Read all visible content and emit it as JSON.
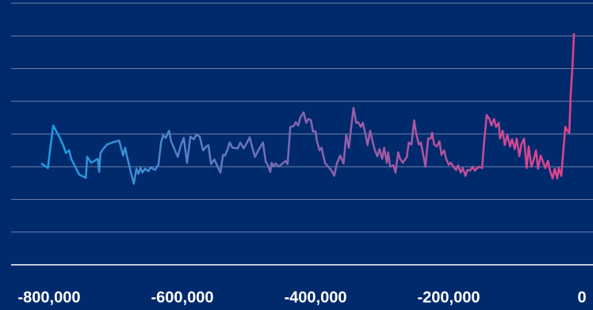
{
  "chart_data": {
    "type": "line",
    "x": [
      -800000,
      -790000,
      -788000,
      -782000,
      -773000,
      -767000,
      -763000,
      -758000,
      -755000,
      -743000,
      -733000,
      -731000,
      -725000,
      -715000,
      -713000,
      -711000,
      -707000,
      -701000,
      -693000,
      -683000,
      -677000,
      -674000,
      -671000,
      -667000,
      -661000,
      -657000,
      -654000,
      -651000,
      -648000,
      -644000,
      -639000,
      -636000,
      -629000,
      -624000,
      -620000,
      -617000,
      -613000,
      -608000,
      -605000,
      -600000,
      -595000,
      -590000,
      -586000,
      -581000,
      -576000,
      -571000,
      -567000,
      -562000,
      -557000,
      -552000,
      -549000,
      -545000,
      -540000,
      -531000,
      -527000,
      -524000,
      -520000,
      -517000,
      -513000,
      -505000,
      -501000,
      -496000,
      -492000,
      -487000,
      -483000,
      -479000,
      -474000,
      -467000,
      -463000,
      -460000,
      -456000,
      -454000,
      -451000,
      -448000,
      -443000,
      -433000,
      -430000,
      -426000,
      -421000,
      -418000,
      -414000,
      -411000,
      -406000,
      -402000,
      -399000,
      -395000,
      -392000,
      -388000,
      -386000,
      -382000,
      -379000,
      -374000,
      -369000,
      -364000,
      -360000,
      -356000,
      -351000,
      -346000,
      -342000,
      -338000,
      -335000,
      -331000,
      -327000,
      -324000,
      -320000,
      -317000,
      -313000,
      -310000,
      -306000,
      -302000,
      -299000,
      -295000,
      -292000,
      -288000,
      -285000,
      -281000,
      -279000,
      -276000,
      -271000,
      -268000,
      -264000,
      -261000,
      -257000,
      -251000,
      -248000,
      -244000,
      -240000,
      -237000,
      -233000,
      -230000,
      -226000,
      -223000,
      -219000,
      -215000,
      -213000,
      -210000,
      -206000,
      -202000,
      -199000,
      -195000,
      -192000,
      -188000,
      -185000,
      -181000,
      -177000,
      -174000,
      -170000,
      -167000,
      -163000,
      -160000,
      -156000,
      -152000,
      -149000,
      -145000,
      -142000,
      -138000,
      -135000,
      -131000,
      -127000,
      -124000,
      -120000,
      -117000,
      -113000,
      -111000,
      -107000,
      -104000,
      -100000,
      -96000,
      -93000,
      -89000,
      -86000,
      -82000,
      -79000,
      -75000,
      -71000,
      -68000,
      -64000,
      -61000,
      -57000,
      -54000,
      -50000,
      -46000,
      -43000,
      -39000,
      -36000,
      -32000,
      -29000,
      -25000,
      -23000,
      -19000,
      -17000,
      -13000,
      -10000,
      -7000,
      -5000,
      -2000,
      0
    ],
    "values": [
      205,
      198,
      215,
      263,
      246,
      233,
      221,
      225,
      212,
      188,
      183,
      215,
      206,
      212,
      192,
      221,
      227,
      234,
      237,
      240,
      217,
      229,
      215,
      198,
      174,
      197,
      189,
      198,
      191,
      197,
      193,
      199,
      195,
      203,
      237,
      248,
      244,
      255,
      239,
      227,
      215,
      234,
      244,
      206,
      246,
      242,
      249,
      246,
      225,
      231,
      233,
      204,
      211,
      191,
      218,
      217,
      227,
      237,
      229,
      228,
      237,
      228,
      235,
      245,
      229,
      215,
      225,
      237,
      208,
      203,
      192,
      206,
      200,
      205,
      200,
      209,
      204,
      261,
      262,
      268,
      263,
      275,
      283,
      267,
      273,
      271,
      254,
      254,
      239,
      225,
      229,
      206,
      200,
      194,
      186,
      205,
      217,
      205,
      249,
      229,
      256,
      290,
      267,
      268,
      261,
      267,
      249,
      233,
      255,
      237,
      225,
      216,
      227,
      212,
      229,
      206,
      222,
      200,
      202,
      191,
      222,
      212,
      206,
      215,
      237,
      234,
      271,
      251,
      234,
      237,
      216,
      200,
      243,
      243,
      252,
      234,
      231,
      239,
      218,
      225,
      212,
      203,
      206,
      200,
      195,
      202,
      191,
      198,
      186,
      195,
      194,
      200,
      194,
      198,
      200,
      198,
      237,
      279,
      273,
      263,
      273,
      261,
      267,
      243,
      255,
      233,
      249,
      231,
      242,
      227,
      243,
      216,
      234,
      243,
      198,
      231,
      200,
      209,
      225,
      197,
      217,
      206,
      198,
      209,
      194,
      182,
      197,
      182,
      198,
      186,
      212,
      261,
      255,
      252,
      309,
      358,
      404
    ],
    "colors": [
      "#1a9fe3",
      "#8466b0",
      "#e5408c"
    ],
    "xlim": [
      -800000,
      0
    ],
    "ylim": [
      50,
      450
    ],
    "xticks": [
      {
        "value": -800000,
        "label": "-800,000"
      },
      {
        "value": -600000,
        "label": "-600,000"
      },
      {
        "value": -400000,
        "label": "-400,000"
      },
      {
        "value": -200000,
        "label": "-200,000"
      },
      0
    ],
    "yticks": [
      50,
      100,
      150,
      200,
      250,
      300,
      350,
      400,
      450
    ],
    "grid": true
  }
}
